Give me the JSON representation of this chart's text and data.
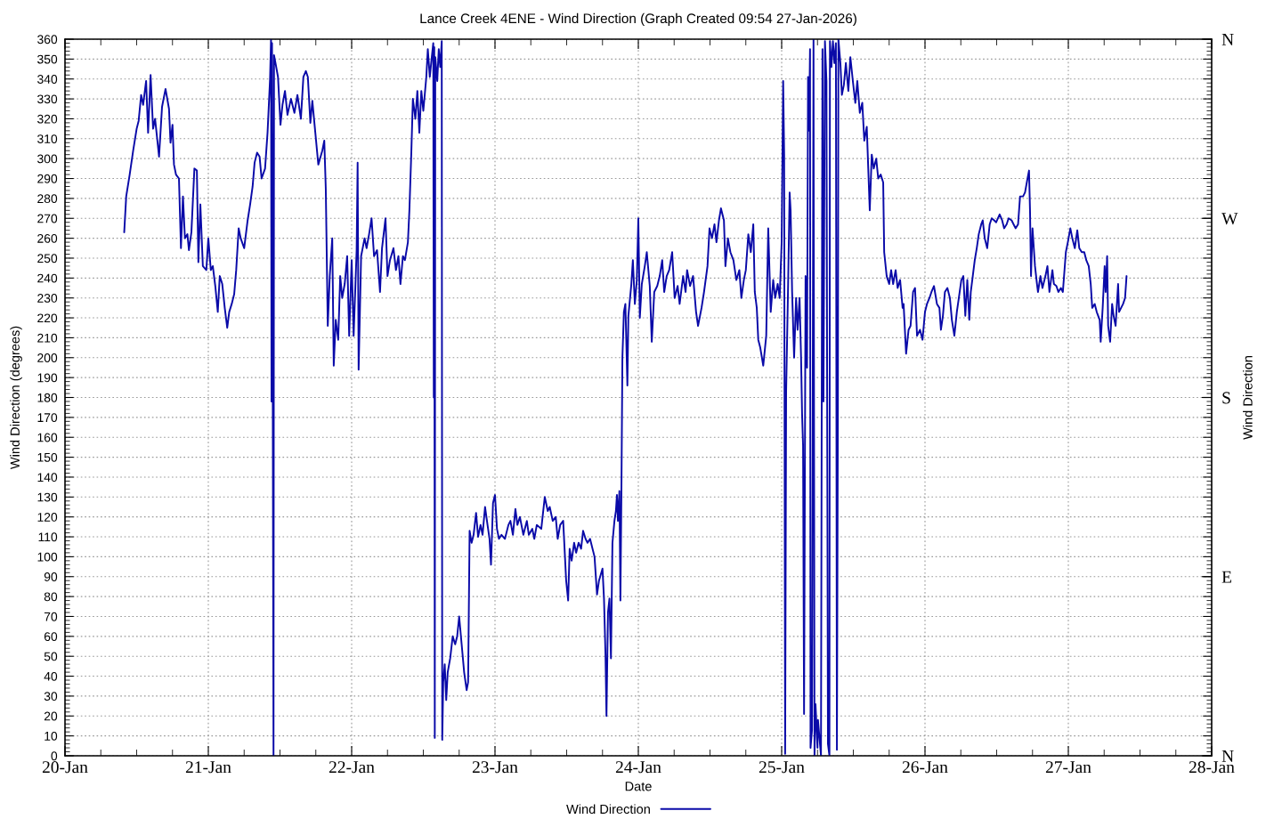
{
  "chart_data": {
    "type": "line",
    "title": "Lance Creek 4ENE - Wind Direction (Graph Created 09:54 27-Jan-2026)",
    "xlabel": "Date",
    "ylabel": "Wind Direction (degrees)",
    "y2label": "Wind Direction",
    "x": [
      "2026-01-20T09:55",
      "2026-01-20T10:15",
      "2026-01-20T10:50",
      "2026-01-20T11:25",
      "2026-01-20T12:00",
      "2026-01-20T12:20",
      "2026-01-20T12:45",
      "2026-01-20T13:05",
      "2026-01-20T13:35",
      "2026-01-20T13:55",
      "2026-01-20T14:20",
      "2026-01-20T14:45",
      "2026-01-20T15:05",
      "2026-01-20T15:45",
      "2026-01-20T16:15",
      "2026-01-20T16:50",
      "2026-01-20T17:25",
      "2026-01-20T17:40",
      "2026-01-20T18:00",
      "2026-01-20T18:15",
      "2026-01-20T18:35",
      "2026-01-20T19:05",
      "2026-01-20T19:25",
      "2026-01-20T19:45",
      "2026-01-20T20:05",
      "2026-01-20T20:30",
      "2026-01-20T20:45",
      "2026-01-20T21:10",
      "2026-01-20T21:40",
      "2026-01-20T22:05",
      "2026-01-20T22:20",
      "2026-01-20T22:40",
      "2026-01-20T23:05",
      "2026-01-20T23:40",
      "2026-01-21T00:00",
      "2026-01-21T00:25",
      "2026-01-21T00:45",
      "2026-01-21T01:10",
      "2026-01-21T01:35",
      "2026-01-21T01:55",
      "2026-01-21T02:20",
      "2026-01-21T02:45",
      "2026-01-21T03:10",
      "2026-01-21T03:30",
      "2026-01-21T03:55",
      "2026-01-21T04:20",
      "2026-01-21T04:40",
      "2026-01-21T05:05",
      "2026-01-21T05:25",
      "2026-01-21T06:00",
      "2026-01-21T06:35",
      "2026-01-21T07:00",
      "2026-01-21T07:25",
      "2026-01-21T07:45",
      "2026-01-21T08:10",
      "2026-01-21T08:35",
      "2026-01-21T08:55",
      "2026-01-21T09:30",
      "2026-01-21T09:55",
      "2026-01-21T10:20",
      "2026-01-21T10:30",
      "2026-01-21T10:35",
      "2026-01-21T10:40",
      "2026-01-21T10:55",
      "2026-01-21T11:00",
      "2026-01-21T11:15",
      "2026-01-21T11:40",
      "2026-01-21T12:05",
      "2026-01-21T12:25",
      "2026-01-21T12:50",
      "2026-01-21T13:15",
      "2026-01-21T13:50",
      "2026-01-21T14:25",
      "2026-01-21T14:55",
      "2026-01-21T15:30",
      "2026-01-21T15:55",
      "2026-01-21T16:20",
      "2026-01-21T16:40",
      "2026-01-21T17:05",
      "2026-01-21T17:25",
      "2026-01-21T17:55",
      "2026-01-21T18:25",
      "2026-01-21T19:05",
      "2026-01-21T19:25",
      "2026-01-21T19:40",
      "2026-01-21T20:00",
      "2026-01-21T20:20",
      "2026-01-21T20:45",
      "2026-01-21T21:00",
      "2026-01-21T21:20",
      "2026-01-21T21:45",
      "2026-01-21T22:05",
      "2026-01-21T22:25",
      "2026-01-21T22:50",
      "2026-01-21T23:15",
      "2026-01-21T23:35",
      "2026-01-22T00:00",
      "2026-01-22T00:20",
      "2026-01-22T00:50",
      "2026-01-22T01:00",
      "2026-01-22T01:10",
      "2026-01-22T01:35",
      "2026-01-22T02:10",
      "2026-01-22T02:30",
      "2026-01-22T02:55",
      "2026-01-22T03:20",
      "2026-01-22T03:45",
      "2026-01-22T04:15",
      "2026-01-22T04:45",
      "2026-01-22T05:05",
      "2026-01-22T05:40",
      "2026-01-22T06:00",
      "2026-01-22T06:25",
      "2026-01-22T07:00",
      "2026-01-22T07:25",
      "2026-01-22T07:50",
      "2026-01-22T08:10",
      "2026-01-22T08:35",
      "2026-01-22T08:55",
      "2026-01-22T09:25",
      "2026-01-22T09:40",
      "2026-01-22T10:00",
      "2026-01-22T10:15",
      "2026-01-22T10:40",
      "2026-01-22T11:00",
      "2026-01-22T11:20",
      "2026-01-22T11:40",
      "2026-01-22T12:00",
      "2026-01-22T12:30",
      "2026-01-22T12:45",
      "2026-01-22T13:05",
      "2026-01-22T13:25",
      "2026-01-22T13:40",
      "2026-01-22T13:45",
      "2026-01-22T13:50",
      "2026-01-22T13:55",
      "2026-01-22T14:00",
      "2026-01-22T14:20",
      "2026-01-22T14:35",
      "2026-01-22T14:50",
      "2026-01-22T15:05",
      "2026-01-22T15:10",
      "2026-01-22T15:20",
      "2026-01-22T15:35",
      "2026-01-22T15:50",
      "2026-01-22T16:05",
      "2026-01-22T16:30",
      "2026-01-22T16:55",
      "2026-01-22T17:20",
      "2026-01-22T17:40",
      "2026-01-22T18:00",
      "2026-01-22T18:25",
      "2026-01-22T18:50",
      "2026-01-22T19:15",
      "2026-01-22T19:30",
      "2026-01-22T19:45",
      "2026-01-22T20:05",
      "2026-01-22T20:25",
      "2026-01-22T20:50",
      "2026-01-22T21:10",
      "2026-01-22T21:35",
      "2026-01-22T21:55",
      "2026-01-22T22:20",
      "2026-01-22T22:45",
      "2026-01-22T23:05",
      "2026-01-22T23:20",
      "2026-01-22T23:40",
      "2026-01-23T00:00",
      "2026-01-23T00:20",
      "2026-01-23T00:40",
      "2026-01-23T01:05",
      "2026-01-23T01:40",
      "2026-01-23T02:15",
      "2026-01-23T02:35",
      "2026-01-23T03:00",
      "2026-01-23T03:25",
      "2026-01-23T03:45",
      "2026-01-23T04:10",
      "2026-01-23T04:45",
      "2026-01-23T05:20",
      "2026-01-23T05:40",
      "2026-01-23T06:15",
      "2026-01-23T06:35",
      "2026-01-23T07:00",
      "2026-01-23T07:45",
      "2026-01-23T08:20",
      "2026-01-23T08:50",
      "2026-01-23T09:10",
      "2026-01-23T09:40",
      "2026-01-23T10:10",
      "2026-01-23T10:30",
      "2026-01-23T10:55",
      "2026-01-23T11:25",
      "2026-01-23T11:55",
      "2026-01-23T12:15",
      "2026-01-23T12:30",
      "2026-01-23T12:50",
      "2026-01-23T13:15",
      "2026-01-23T13:35",
      "2026-01-23T14:00",
      "2026-01-23T14:25",
      "2026-01-23T14:45",
      "2026-01-23T15:10",
      "2026-01-23T15:30",
      "2026-01-23T15:55",
      "2026-01-23T16:20",
      "2026-01-23T16:40",
      "2026-01-23T17:05",
      "2026-01-23T17:25",
      "2026-01-23T18:00",
      "2026-01-23T18:15",
      "2026-01-23T18:30",
      "2026-01-23T18:40",
      "2026-01-23T18:55",
      "2026-01-23T19:10",
      "2026-01-23T19:25",
      "2026-01-23T19:40",
      "2026-01-23T20:00",
      "2026-01-23T20:15",
      "2026-01-23T20:25",
      "2026-01-23T20:35",
      "2026-01-23T20:50",
      "2026-01-23T21:00",
      "2026-01-23T21:10",
      "2026-01-23T21:20",
      "2026-01-23T21:35",
      "2026-01-23T21:50",
      "2026-01-23T22:10",
      "2026-01-23T22:20",
      "2026-01-23T22:50",
      "2026-01-23T23:05",
      "2026-01-23T23:25",
      "2026-01-23T23:45",
      "2026-01-24T00:00",
      "2026-01-24T00:15",
      "2026-01-24T00:35",
      "2026-01-24T01:05",
      "2026-01-24T01:25",
      "2026-01-24T01:55",
      "2026-01-24T02:15",
      "2026-01-24T02:40",
      "2026-01-24T03:10",
      "2026-01-24T03:35",
      "2026-01-24T04:00",
      "2026-01-24T04:20",
      "2026-01-24T04:45",
      "2026-01-24T05:10",
      "2026-01-24T05:40",
      "2026-01-24T06:05",
      "2026-01-24T06:35",
      "2026-01-24T06:55",
      "2026-01-24T07:30",
      "2026-01-24T07:55",
      "2026-01-24T08:10",
      "2026-01-24T08:40",
      "2026-01-24T09:10",
      "2026-01-24T09:40",
      "2026-01-24T10:00",
      "2026-01-24T10:35",
      "2026-01-24T11:00",
      "2026-01-24T11:35",
      "2026-01-24T11:55",
      "2026-01-24T12:20",
      "2026-01-24T12:45",
      "2026-01-24T13:05",
      "2026-01-24T13:30",
      "2026-01-24T13:50",
      "2026-01-24T14:20",
      "2026-01-24T14:35",
      "2026-01-24T15:00",
      "2026-01-24T15:25",
      "2026-01-24T15:55",
      "2026-01-24T16:25",
      "2026-01-24T16:55",
      "2026-01-24T17:15",
      "2026-01-24T17:40",
      "2026-01-24T18:00",
      "2026-01-24T18:25",
      "2026-01-24T18:50",
      "2026-01-24T19:15",
      "2026-01-24T19:30",
      "2026-01-24T19:50",
      "2026-01-24T20:05",
      "2026-01-24T20:25",
      "2026-01-24T20:55",
      "2026-01-24T21:25",
      "2026-01-24T21:45",
      "2026-01-24T22:10",
      "2026-01-24T22:35",
      "2026-01-24T22:55",
      "2026-01-24T23:20",
      "2026-01-24T23:40",
      "2026-01-25T00:00",
      "2026-01-25T00:15",
      "2026-01-25T00:25",
      "2026-01-25T00:35",
      "2026-01-25T00:45",
      "2026-01-25T01:05",
      "2026-01-25T01:20",
      "2026-01-25T01:30",
      "2026-01-25T01:45",
      "2026-01-25T02:05",
      "2026-01-25T02:25",
      "2026-01-25T02:40",
      "2026-01-25T03:00",
      "2026-01-25T03:15",
      "2026-01-25T03:25",
      "2026-01-25T03:35",
      "2026-01-25T03:45",
      "2026-01-25T04:00",
      "2026-01-25T04:15",
      "2026-01-25T04:25",
      "2026-01-25T04:35",
      "2026-01-25T04:45",
      "2026-01-25T04:50",
      "2026-01-25T05:05",
      "2026-01-25T05:20",
      "2026-01-25T05:30",
      "2026-01-25T05:40",
      "2026-01-25T06:00",
      "2026-01-25T06:05",
      "2026-01-25T06:20",
      "2026-01-25T06:35",
      "2026-01-25T06:50",
      "2026-01-25T07:00",
      "2026-01-25T07:15",
      "2026-01-25T07:30",
      "2026-01-25T07:45",
      "2026-01-25T08:00",
      "2026-01-25T08:05",
      "2026-01-25T08:20",
      "2026-01-25T08:35",
      "2026-01-25T08:50",
      "2026-01-25T09:05",
      "2026-01-25T09:15",
      "2026-01-25T09:25",
      "2026-01-25T09:30",
      "2026-01-25T09:50",
      "2026-01-25T10:05",
      "2026-01-25T10:25",
      "2026-01-25T10:45",
      "2026-01-25T11:10",
      "2026-01-25T11:30",
      "2026-01-25T11:55",
      "2026-01-25T12:20",
      "2026-01-25T12:40",
      "2026-01-25T13:05",
      "2026-01-25T13:30",
      "2026-01-25T13:50",
      "2026-01-25T14:15",
      "2026-01-25T14:30",
      "2026-01-25T14:45",
      "2026-01-25T15:05",
      "2026-01-25T15:25",
      "2026-01-25T15:50",
      "2026-01-25T16:10",
      "2026-01-25T16:35",
      "2026-01-25T17:00",
      "2026-01-25T17:10",
      "2026-01-25T17:35",
      "2026-01-25T18:00",
      "2026-01-25T18:20",
      "2026-01-25T18:40",
      "2026-01-25T19:05",
      "2026-01-25T19:25",
      "2026-01-25T19:50",
      "2026-01-25T20:15",
      "2026-01-25T20:25",
      "2026-01-25T20:50",
      "2026-01-25T21:15",
      "2026-01-25T21:35",
      "2026-01-25T22:00",
      "2026-01-25T22:20",
      "2026-01-25T22:40",
      "2026-01-25T23:10",
      "2026-01-25T23:35",
      "2026-01-26T00:00",
      "2026-01-26T00:20",
      "2026-01-26T00:45",
      "2026-01-26T01:05",
      "2026-01-26T01:30",
      "2026-01-26T02:00",
      "2026-01-26T02:25",
      "2026-01-26T02:40",
      "2026-01-26T03:00",
      "2026-01-26T03:20",
      "2026-01-26T03:45",
      "2026-01-26T04:10",
      "2026-01-26T04:30",
      "2026-01-26T04:55",
      "2026-01-26T05:20",
      "2026-01-26T05:40",
      "2026-01-26T06:05",
      "2026-01-26T06:25",
      "2026-01-26T06:45",
      "2026-01-26T07:05",
      "2026-01-26T07:25",
      "2026-01-26T07:40",
      "2026-01-26T08:00",
      "2026-01-26T08:20",
      "2026-01-26T08:40",
      "2026-01-26T09:00",
      "2026-01-26T09:25",
      "2026-01-26T09:40",
      "2026-01-26T10:00",
      "2026-01-26T10:25",
      "2026-01-26T10:50",
      "2026-01-26T11:10",
      "2026-01-26T11:35",
      "2026-01-26T11:55",
      "2026-01-26T12:30",
      "2026-01-26T12:55",
      "2026-01-26T13:15",
      "2026-01-26T13:40",
      "2026-01-26T14:00",
      "2026-01-26T14:30",
      "2026-01-26T14:50",
      "2026-01-26T15:10",
      "2026-01-26T15:35",
      "2026-01-26T15:55",
      "2026-01-26T16:25",
      "2026-01-26T16:45",
      "2026-01-26T17:10",
      "2026-01-26T17:25",
      "2026-01-26T17:35",
      "2026-01-26T17:45",
      "2026-01-26T18:00",
      "2026-01-26T18:25",
      "2026-01-26T18:45",
      "2026-01-26T18:55",
      "2026-01-26T19:20",
      "2026-01-26T19:40",
      "2026-01-26T20:10",
      "2026-01-26T20:30",
      "2026-01-26T20:50",
      "2026-01-26T21:20",
      "2026-01-26T21:35",
      "2026-01-26T22:00",
      "2026-01-26T22:20",
      "2026-01-26T22:45",
      "2026-01-26T23:05",
      "2026-01-26T23:35",
      "2026-01-26T23:55",
      "2026-01-27T00:20",
      "2026-01-27T00:40",
      "2026-01-27T01:05",
      "2026-01-27T01:30",
      "2026-01-27T01:50",
      "2026-01-27T02:15",
      "2026-01-27T02:40",
      "2026-01-27T03:00",
      "2026-01-27T03:25",
      "2026-01-27T03:45",
      "2026-01-27T04:00",
      "2026-01-27T04:25",
      "2026-01-27T04:45",
      "2026-01-27T05:15",
      "2026-01-27T05:25",
      "2026-01-27T05:45",
      "2026-01-27T06:05",
      "2026-01-27T06:15",
      "2026-01-27T06:30",
      "2026-01-27T06:40",
      "2026-01-27T07:00",
      "2026-01-27T07:20",
      "2026-01-27T07:35",
      "2026-01-27T07:55",
      "2026-01-27T08:20",
      "2026-01-27T08:30",
      "2026-01-27T08:50",
      "2026-01-27T09:10",
      "2026-01-27T09:30",
      "2026-01-27T09:45"
    ],
    "series": [
      {
        "name": "Wind Direction",
        "color": "#0a0aa8",
        "values": [
          263,
          281,
          292,
          304,
          315,
          319,
          332,
          327,
          339,
          313,
          342,
          315,
          320,
          301,
          326,
          335,
          325,
          308,
          317,
          297,
          292,
          290,
          255,
          281,
          260,
          262,
          254,
          263,
          295,
          294,
          248,
          277,
          246,
          244,
          260,
          244,
          246,
          236,
          223,
          241,
          237,
          225,
          215,
          223,
          227,
          232,
          244,
          265,
          260,
          255,
          269,
          277,
          286,
          298,
          303,
          301,
          290,
          295,
          313,
          340,
          360,
          178,
          358,
          0,
          352,
          348,
          341,
          317,
          327,
          334,
          322,
          330,
          323,
          332,
          320,
          341,
          344,
          341,
          318,
          329,
          313,
          297,
          304,
          309,
          285,
          216,
          241,
          260,
          196,
          219,
          209,
          241,
          230,
          237,
          251,
          211,
          249,
          211,
          254,
          298,
          194,
          251,
          260,
          255,
          262,
          270,
          251,
          254,
          233,
          255,
          270,
          241,
          249,
          255,
          244,
          251,
          237,
          251,
          249,
          258,
          274,
          304,
          330,
          320,
          334,
          313,
          334,
          324,
          341,
          355,
          341,
          351,
          358,
          180,
          356,
          9,
          351,
          339,
          355,
          346,
          359,
          8,
          37,
          46,
          28,
          42,
          49,
          60,
          56,
          60,
          70,
          56,
          42,
          33,
          37,
          113,
          107,
          111,
          122,
          110,
          116,
          111,
          125,
          116,
          109,
          96,
          127,
          131,
          114,
          109,
          111,
          109,
          116,
          118,
          111,
          124,
          116,
          120,
          111,
          118,
          111,
          114,
          109,
          116,
          114,
          130,
          123,
          125,
          118,
          120,
          109,
          116,
          118,
          88,
          78,
          104,
          98,
          107,
          102,
          107,
          104,
          113,
          109,
          107,
          109,
          104,
          100,
          81,
          88,
          94,
          79,
          51,
          20,
          72,
          79,
          49,
          107,
          118,
          123,
          131,
          118,
          133,
          78,
          132,
          200,
          223,
          227,
          186,
          221,
          237,
          249,
          227,
          239,
          270,
          220,
          237,
          246,
          253,
          236,
          208,
          233,
          236,
          241,
          249,
          233,
          241,
          244,
          253,
          230,
          236,
          227,
          241,
          233,
          244,
          236,
          241,
          223,
          216,
          225,
          233,
          246,
          265,
          260,
          267,
          258,
          269,
          275,
          269,
          246,
          260,
          253,
          249,
          239,
          244,
          230,
          239,
          244,
          262,
          253,
          267,
          233,
          225,
          209,
          205,
          196,
          211,
          265,
          223,
          239,
          230,
          237,
          230,
          258,
          339,
          302,
          1,
          183,
          237,
          283,
          274,
          233,
          200,
          230,
          214,
          230,
          200,
          172,
          156,
          21,
          241,
          195,
          341,
          314,
          355,
          4,
          13,
          360,
          0,
          26,
          4,
          18,
          9,
          0,
          355,
          178,
          359,
          339,
          6,
          0,
          359,
          346,
          359,
          348,
          358,
          3,
          176,
          360,
          348,
          332,
          337,
          348,
          334,
          351,
          339,
          328,
          339,
          323,
          328,
          309,
          316,
          295,
          274,
          302,
          295,
          300,
          290,
          292,
          288,
          253,
          241,
          237,
          244,
          237,
          244,
          235,
          239,
          225,
          227,
          202,
          214,
          216,
          233,
          235,
          211,
          214,
          209,
          223,
          227,
          230,
          233,
          236,
          227,
          225,
          214,
          221,
          233,
          235,
          230,
          219,
          211,
          223,
          230,
          239,
          241,
          221,
          239,
          219,
          233,
          241,
          249,
          255,
          262,
          267,
          269,
          260,
          255,
          267,
          270,
          269,
          268,
          272,
          269,
          265,
          267,
          270,
          269,
          267,
          265,
          267,
          281,
          281,
          283,
          290,
          294,
          274,
          241,
          265,
          246,
          237,
          233,
          241,
          235,
          241,
          246,
          233,
          244,
          237,
          236,
          233,
          235,
          233,
          253,
          258,
          265,
          260,
          255,
          264,
          255,
          253,
          253,
          249,
          246,
          237,
          225,
          227,
          223,
          219,
          208,
          225,
          246,
          233,
          251,
          216,
          208,
          227,
          221,
          216,
          237,
          223,
          225,
          227,
          230,
          241
        ]
      }
    ],
    "xlim": [
      "2026-01-20",
      "2026-01-28"
    ],
    "xticks": [
      {
        "value": "2026-01-20",
        "label": "20-Jan"
      },
      {
        "value": "2026-01-20T06:00",
        "label": null
      },
      {
        "value": "2026-01-20T12:00",
        "label": null
      },
      {
        "value": "2026-01-20T18:00",
        "label": null
      },
      {
        "value": "2026-01-21",
        "label": "21-Jan"
      },
      {
        "value": "2026-01-21T06:00",
        "label": null
      },
      {
        "value": "2026-01-21T12:00",
        "label": null
      },
      {
        "value": "2026-01-21T18:00",
        "label": null
      },
      {
        "value": "2026-01-22",
        "label": "22-Jan"
      },
      {
        "value": "2026-01-22T06:00",
        "label": null
      },
      {
        "value": "2026-01-22T12:00",
        "label": null
      },
      {
        "value": "2026-01-22T18:00",
        "label": null
      },
      {
        "value": "2026-01-23",
        "label": "23-Jan"
      },
      {
        "value": "2026-01-23T06:00",
        "label": null
      },
      {
        "value": "2026-01-23T12:00",
        "label": null
      },
      {
        "value": "2026-01-23T18:00",
        "label": null
      },
      {
        "value": "2026-01-24",
        "label": "24-Jan"
      },
      {
        "value": "2026-01-24T06:00",
        "label": null
      },
      {
        "value": "2026-01-24T12:00",
        "label": null
      },
      {
        "value": "2026-01-24T18:00",
        "label": null
      },
      {
        "value": "2026-01-25",
        "label": "25-Jan"
      },
      {
        "value": "2026-01-25T06:00",
        "label": null
      },
      {
        "value": "2026-01-25T12:00",
        "label": null
      },
      {
        "value": "2026-01-25T18:00",
        "label": null
      },
      {
        "value": "2026-01-26",
        "label": "26-Jan"
      },
      {
        "value": "2026-01-26T06:00",
        "label": null
      },
      {
        "value": "2026-01-26T12:00",
        "label": null
      },
      {
        "value": "2026-01-26T18:00",
        "label": null
      },
      {
        "value": "2026-01-27",
        "label": "27-Jan"
      },
      {
        "value": "2026-01-27T06:00",
        "label": null
      },
      {
        "value": "2026-01-27T12:00",
        "label": null
      },
      {
        "value": "2026-01-27T18:00",
        "label": null
      },
      {
        "value": "2026-01-28",
        "label": "28-Jan"
      }
    ],
    "ylim": [
      0,
      360
    ],
    "yticks": [
      0,
      10,
      20,
      30,
      40,
      50,
      60,
      70,
      80,
      90,
      100,
      110,
      120,
      130,
      140,
      150,
      160,
      170,
      180,
      190,
      200,
      210,
      220,
      230,
      240,
      250,
      260,
      270,
      280,
      290,
      300,
      310,
      320,
      330,
      340,
      350,
      360,
      {
        "value": 2,
        "label": null
      },
      {
        "value": 4,
        "label": null
      },
      {
        "value": 6,
        "label": null
      },
      {
        "value": 8,
        "label": null
      },
      {
        "value": 12,
        "label": null
      },
      {
        "value": 14,
        "label": null
      },
      {
        "value": 16,
        "label": null
      },
      {
        "value": 18,
        "label": null
      },
      {
        "value": 22,
        "label": null
      },
      {
        "value": 24,
        "label": null
      },
      {
        "value": 26,
        "label": null
      },
      {
        "value": 28,
        "label": null
      },
      {
        "value": 32,
        "label": null
      },
      {
        "value": 34,
        "label": null
      },
      {
        "value": 36,
        "label": null
      },
      {
        "value": 38,
        "label": null
      },
      {
        "value": 42,
        "label": null
      },
      {
        "value": 44,
        "label": null
      },
      {
        "value": 46,
        "label": null
      },
      {
        "value": 48,
        "label": null
      },
      {
        "value": 52,
        "label": null
      },
      {
        "value": 54,
        "label": null
      },
      {
        "value": 56,
        "label": null
      },
      {
        "value": 58,
        "label": null
      },
      {
        "value": 62,
        "label": null
      },
      {
        "value": 64,
        "label": null
      },
      {
        "value": 66,
        "label": null
      },
      {
        "value": 68,
        "label": null
      },
      {
        "value": 72,
        "label": null
      },
      {
        "value": 74,
        "label": null
      },
      {
        "value": 76,
        "label": null
      },
      {
        "value": 78,
        "label": null
      },
      {
        "value": 82,
        "label": null
      },
      {
        "value": 84,
        "label": null
      },
      {
        "value": 86,
        "label": null
      },
      {
        "value": 88,
        "label": null
      },
      {
        "value": 92,
        "label": null
      },
      {
        "value": 94,
        "label": null
      },
      {
        "value": 96,
        "label": null
      },
      {
        "value": 98,
        "label": null
      },
      {
        "value": 102,
        "label": null
      },
      {
        "value": 104,
        "label": null
      },
      {
        "value": 106,
        "label": null
      },
      {
        "value": 108,
        "label": null
      },
      {
        "value": 112,
        "label": null
      },
      {
        "value": 114,
        "label": null
      },
      {
        "value": 116,
        "label": null
      },
      {
        "value": 118,
        "label": null
      },
      {
        "value": 122,
        "label": null
      },
      {
        "value": 124,
        "label": null
      },
      {
        "value": 126,
        "label": null
      },
      {
        "value": 128,
        "label": null
      },
      {
        "value": 132,
        "label": null
      },
      {
        "value": 134,
        "label": null
      },
      {
        "value": 136,
        "label": null
      },
      {
        "value": 138,
        "label": null
      },
      {
        "value": 142,
        "label": null
      },
      {
        "value": 144,
        "label": null
      },
      {
        "value": 146,
        "label": null
      },
      {
        "value": 148,
        "label": null
      },
      {
        "value": 152,
        "label": null
      },
      {
        "value": 154,
        "label": null
      },
      {
        "value": 156,
        "label": null
      },
      {
        "value": 158,
        "label": null
      },
      {
        "value": 162,
        "label": null
      },
      {
        "value": 164,
        "label": null
      },
      {
        "value": 166,
        "label": null
      },
      {
        "value": 168,
        "label": null
      },
      {
        "value": 172,
        "label": null
      },
      {
        "value": 174,
        "label": null
      },
      {
        "value": 176,
        "label": null
      },
      {
        "value": 178,
        "label": null
      },
      {
        "value": 182,
        "label": null
      },
      {
        "value": 184,
        "label": null
      },
      {
        "value": 186,
        "label": null
      },
      {
        "value": 188,
        "label": null
      },
      {
        "value": 192,
        "label": null
      },
      {
        "value": 194,
        "label": null
      },
      {
        "value": 196,
        "label": null
      },
      {
        "value": 198,
        "label": null
      },
      {
        "value": 202,
        "label": null
      },
      {
        "value": 204,
        "label": null
      },
      {
        "value": 206,
        "label": null
      },
      {
        "value": 208,
        "label": null
      },
      {
        "value": 212,
        "label": null
      },
      {
        "value": 214,
        "label": null
      },
      {
        "value": 216,
        "label": null
      },
      {
        "value": 218,
        "label": null
      },
      {
        "value": 222,
        "label": null
      },
      {
        "value": 224,
        "label": null
      },
      {
        "value": 226,
        "label": null
      },
      {
        "value": 228,
        "label": null
      },
      {
        "value": 232,
        "label": null
      },
      {
        "value": 234,
        "label": null
      },
      {
        "value": 236,
        "label": null
      },
      {
        "value": 238,
        "label": null
      },
      {
        "value": 242,
        "label": null
      },
      {
        "value": 244,
        "label": null
      },
      {
        "value": 246,
        "label": null
      },
      {
        "value": 248,
        "label": null
      },
      {
        "value": 252,
        "label": null
      },
      {
        "value": 254,
        "label": null
      },
      {
        "value": 256,
        "label": null
      },
      {
        "value": 258,
        "label": null
      },
      {
        "value": 262,
        "label": null
      },
      {
        "value": 264,
        "label": null
      },
      {
        "value": 266,
        "label": null
      },
      {
        "value": 268,
        "label": null
      },
      {
        "value": 272,
        "label": null
      },
      {
        "value": 274,
        "label": null
      },
      {
        "value": 276,
        "label": null
      },
      {
        "value": 278,
        "label": null
      },
      {
        "value": 282,
        "label": null
      },
      {
        "value": 284,
        "label": null
      },
      {
        "value": 286,
        "label": null
      },
      {
        "value": 288,
        "label": null
      },
      {
        "value": 292,
        "label": null
      },
      {
        "value": 294,
        "label": null
      },
      {
        "value": 296,
        "label": null
      },
      {
        "value": 298,
        "label": null
      },
      {
        "value": 302,
        "label": null
      },
      {
        "value": 304,
        "label": null
      },
      {
        "value": 306,
        "label": null
      },
      {
        "value": 308,
        "label": null
      },
      {
        "value": 312,
        "label": null
      },
      {
        "value": 314,
        "label": null
      },
      {
        "value": 316,
        "label": null
      },
      {
        "value": 318,
        "label": null
      },
      {
        "value": 322,
        "label": null
      },
      {
        "value": 324,
        "label": null
      },
      {
        "value": 326,
        "label": null
      },
      {
        "value": 328,
        "label": null
      },
      {
        "value": 332,
        "label": null
      },
      {
        "value": 334,
        "label": null
      },
      {
        "value": 336,
        "label": null
      },
      {
        "value": 338,
        "label": null
      },
      {
        "value": 342,
        "label": null
      },
      {
        "value": 344,
        "label": null
      },
      {
        "value": 346,
        "label": null
      },
      {
        "value": 348,
        "label": null
      },
      {
        "value": 352,
        "label": null
      },
      {
        "value": 354,
        "label": null
      },
      {
        "value": 356,
        "label": null
      },
      {
        "value": 358,
        "label": null
      }
    ],
    "y2_categories": [
      "N",
      "W",
      "S",
      "E",
      "N"
    ],
    "grid": true,
    "legend": "bottom",
    "line_style": "solid"
  }
}
